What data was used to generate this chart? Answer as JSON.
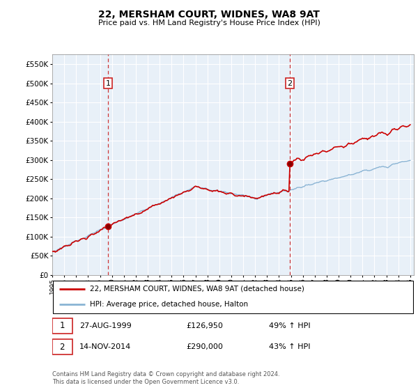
{
  "title": "22, MERSHAM COURT, WIDNES, WA8 9AT",
  "subtitle": "Price paid vs. HM Land Registry's House Price Index (HPI)",
  "legend_line1": "22, MERSHAM COURT, WIDNES, WA8 9AT (detached house)",
  "legend_line2": "HPI: Average price, detached house, Halton",
  "transaction1_date": "27-AUG-1999",
  "transaction1_price": "£126,950",
  "transaction1_hpi": "49% ↑ HPI",
  "transaction2_date": "14-NOV-2014",
  "transaction2_price": "£290,000",
  "transaction2_hpi": "43% ↑ HPI",
  "footer": "Contains HM Land Registry data © Crown copyright and database right 2024.\nThis data is licensed under the Open Government Licence v3.0.",
  "hpi_color": "#8ab4d4",
  "price_color": "#cc0000",
  "vline_color": "#cc2222",
  "chart_bg": "#e8f0f8",
  "ylim": [
    0,
    575000
  ],
  "yticks": [
    0,
    50000,
    100000,
    150000,
    200000,
    250000,
    300000,
    350000,
    400000,
    450000,
    500000,
    550000
  ],
  "t1_price": 126950,
  "t2_price": 290000,
  "t1_year": 1999.667,
  "t2_year": 2014.917
}
